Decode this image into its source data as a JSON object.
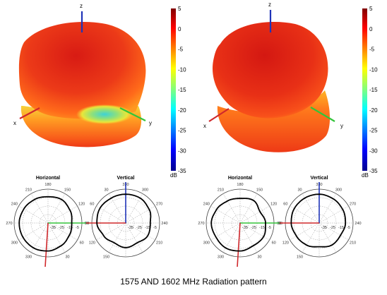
{
  "caption": "1575 AND 1602 MHz Radiation pattern",
  "colors": {
    "x_axis": "#d0282c",
    "y_axis": "#33c43a",
    "z_axis": "#1f34b8",
    "trace": "#000000",
    "grid": "#9a9a9a"
  },
  "chart_data": [
    {
      "type": "surface3d",
      "name": "pattern-3d-1575",
      "axis_labels": {
        "x": "x",
        "y": "y",
        "z": "z"
      },
      "colorbar": {
        "unit": "dB",
        "ticks": [
          "5",
          "0",
          "-5",
          "-10",
          "-15",
          "-20",
          "-25",
          "-30",
          "-35"
        ],
        "range": [
          -35,
          5
        ]
      }
    },
    {
      "type": "surface3d",
      "name": "pattern-3d-1602",
      "axis_labels": {
        "x": "x",
        "y": "y",
        "z": "z"
      },
      "colorbar": {
        "unit": "dB",
        "ticks": [
          "5",
          "0",
          "-5",
          "-10",
          "-15",
          "-20",
          "-25",
          "-30",
          "-35"
        ],
        "range": [
          -35,
          5
        ]
      }
    },
    {
      "type": "polar",
      "title": "Horizontal",
      "rlim": [
        -35,
        5
      ],
      "angle_ticks": [
        "180",
        "150",
        "120",
        "90",
        "60",
        "30",
        "330",
        "300",
        "270",
        "240",
        "210"
      ],
      "radial_ticks": [
        "-35",
        "-25",
        "-15",
        "-5"
      ],
      "angles_deg": [
        0,
        30,
        60,
        90,
        120,
        150,
        180,
        210,
        240,
        270,
        300,
        330
      ],
      "values_db": [
        -4,
        -3,
        -5,
        -7,
        -6,
        -4,
        -2,
        -1,
        -1,
        -1,
        -2,
        -3
      ]
    },
    {
      "type": "polar",
      "title": "Vertical",
      "rlim": [
        -35,
        5
      ],
      "angle_ticks": [
        "330",
        "300",
        "270",
        "240",
        "210",
        "150",
        "120",
        "90",
        "60",
        "30"
      ],
      "radial_ticks": [
        "-35",
        "-25",
        "-15",
        "-5"
      ],
      "angles_deg": [
        0,
        30,
        60,
        90,
        120,
        150,
        180,
        210,
        240,
        270,
        300,
        330
      ],
      "values_db": [
        -1,
        -1,
        -3,
        -6,
        -5,
        -8,
        -6,
        -8,
        -5,
        -1,
        0,
        -1
      ]
    },
    {
      "type": "polar",
      "title": "Horizontal",
      "rlim": [
        -35,
        5
      ],
      "angle_ticks": [
        "180",
        "150",
        "120",
        "90",
        "60",
        "30",
        "330",
        "300",
        "270",
        "240",
        "210"
      ],
      "radial_ticks": [
        "-35",
        "-25",
        "-15",
        "-5"
      ],
      "angles_deg": [
        0,
        30,
        60,
        90,
        120,
        150,
        180,
        210,
        240,
        270,
        300,
        330
      ],
      "values_db": [
        -6,
        -4,
        -8,
        -5,
        -3,
        -4,
        -2,
        -1,
        -2,
        -1,
        -3,
        -5
      ]
    },
    {
      "type": "polar",
      "title": "Vertical",
      "rlim": [
        -35,
        5
      ],
      "angle_ticks": [
        "330",
        "300",
        "270",
        "240",
        "210",
        "150",
        "120",
        "90",
        "60",
        "30"
      ],
      "radial_ticks": [
        "-35",
        "-25",
        "-15",
        "-5"
      ],
      "angles_deg": [
        0,
        30,
        60,
        90,
        120,
        150,
        180,
        210,
        240,
        270,
        300,
        330
      ],
      "values_db": [
        -1,
        -2,
        -3,
        -4,
        -6,
        -5,
        -7,
        -5,
        -4,
        -2,
        -1,
        -1
      ]
    }
  ]
}
